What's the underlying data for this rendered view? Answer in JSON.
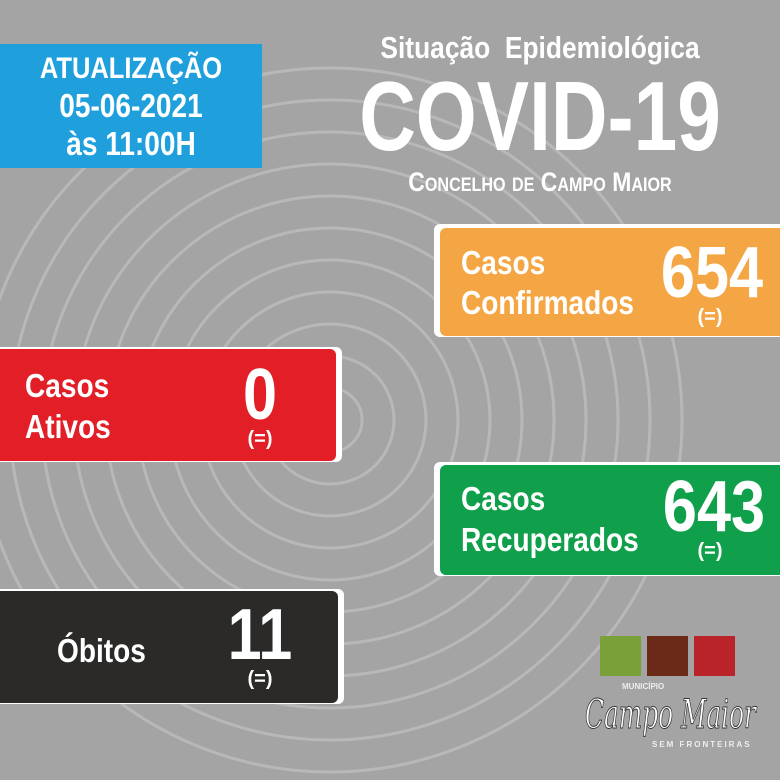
{
  "update": {
    "line1": "Atualização",
    "line2": "05-06-2021",
    "line3": "às 11:00H"
  },
  "header": {
    "subtitle": "Situação  Epidemiológica",
    "title": "COVID-19",
    "region": "Concelho de Campo Maior"
  },
  "cards": {
    "confirmed": {
      "label1": "Casos",
      "label2": "Confirmados",
      "value": "654",
      "change": "(=)",
      "color": "#f5a644"
    },
    "active": {
      "label1": "Casos",
      "label2": "Ativos",
      "value": "0",
      "change": "(=)",
      "color": "#e21f26"
    },
    "recovered": {
      "label1": "Casos",
      "label2": "Recuperados",
      "value": "643",
      "change": "(=)",
      "color": "#10a04b"
    },
    "deaths": {
      "label1": "Óbitos",
      "value": "11",
      "change": "(=)",
      "color": "#2b2a29"
    }
  },
  "logo": {
    "top": "Município",
    "name": "Campo Maior",
    "tagline": "Sem Fronteiras"
  },
  "colors": {
    "background": "#a4a4a4",
    "update_box": "#1fa0dc"
  }
}
